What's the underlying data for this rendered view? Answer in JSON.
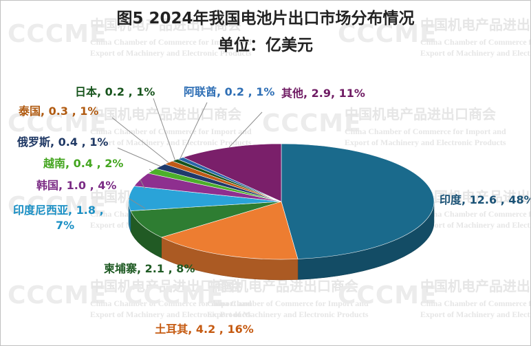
{
  "watermark": {
    "logo": "CCCME",
    "cn": "中国机电产品进出口商会",
    "en1": "China Chamber of Commerce for Import and",
    "en2": "Export of Machinery and Electronic Products"
  },
  "chart_data": {
    "type": "pie",
    "title": "图5 2024年我国电池片出口市场分布情况",
    "subtitle": "单位：亿美元",
    "categories": [
      "印度",
      "土耳其",
      "柬埔寨",
      "印度尼西亚",
      "韩国",
      "越南",
      "俄罗斯",
      "泰国",
      "日本",
      "阿联酋",
      "其他"
    ],
    "values": [
      12.6,
      4.2,
      2.1,
      1.8,
      1.0,
      0.4,
      0.4,
      0.3,
      0.2,
      0.2,
      2.9
    ],
    "percents": [
      48,
      16,
      8,
      7,
      4,
      2,
      1,
      1,
      1,
      1,
      11
    ],
    "labels": [
      "印度, 12.6 , 48%",
      "土耳其, 4.2 , 16%",
      "柬埔寨, 2.1 , 8%",
      "印度尼西亚, 1.8 ,",
      "韩国, 1.0 , 4%",
      "越南, 0.4 , 2%",
      "俄罗斯, 0.4 , 1%",
      "泰国, 0.3 , 1%",
      "日本, 0.2 , 1%",
      "阿联酋, 0.2 , 1%",
      "其他, 2.9, 11%"
    ],
    "label_extra": {
      "3": "7%"
    },
    "colors": [
      "#1a6a8c",
      "#ed7d31",
      "#2e7d32",
      "#2aa3d8",
      "#8e2f8f",
      "#4caf2a",
      "#1f3a6b",
      "#c05a16",
      "#17541c",
      "#2a66a8",
      "#7a1f6a"
    ],
    "label_colors": [
      "#1a5276",
      "#c55a11",
      "#1e5a23",
      "#1a8fc4",
      "#7b2c85",
      "#43a51f",
      "#1f3864",
      "#b05a10",
      "#17541c",
      "#2f6fb5",
      "#6f1b63"
    ],
    "start_angle_deg": 0,
    "legend": "none"
  }
}
